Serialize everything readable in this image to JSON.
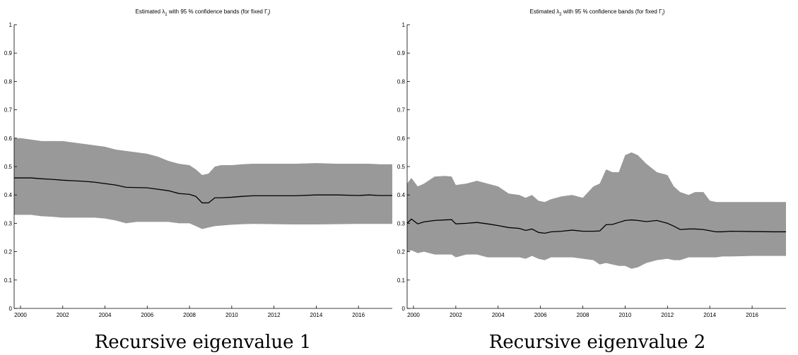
{
  "chart_data": [
    {
      "type": "area",
      "title_prefix": "Estimated",
      "title_symbol": "λ",
      "title_subscript": "1",
      "title_middle": "with 95 % confidence bands (for fixed",
      "title_symbol2": "Γ",
      "title_subscript2": "i",
      "title_suffix": ")",
      "caption": "Recursive eigenvalue 1",
      "xlim": [
        1999.7,
        2017.6
      ],
      "ylim": [
        0,
        1
      ],
      "xticks": [
        2000,
        2002,
        2004,
        2006,
        2008,
        2010,
        2012,
        2014,
        2016
      ],
      "yticks": [
        0,
        0.1,
        0.2,
        0.3,
        0.4,
        0.5,
        0.6,
        0.7,
        0.8,
        0.9,
        1
      ],
      "band_color": "#999999",
      "line_color": "#000000",
      "x": [
        1999.7,
        2000.0,
        2000.5,
        2001.0,
        2001.5,
        2002.0,
        2002.5,
        2003.0,
        2003.5,
        2004.0,
        2004.5,
        2005.0,
        2005.5,
        2006.0,
        2006.5,
        2007.0,
        2007.5,
        2008.0,
        2008.3,
        2008.6,
        2008.9,
        2009.2,
        2009.5,
        2010.0,
        2010.5,
        2011.0,
        2012.0,
        2013.0,
        2014.0,
        2015.0,
        2016.0,
        2016.5,
        2017.0,
        2017.6
      ],
      "estimate": [
        0.46,
        0.46,
        0.46,
        0.457,
        0.455,
        0.452,
        0.45,
        0.448,
        0.445,
        0.44,
        0.435,
        0.427,
        0.426,
        0.425,
        0.42,
        0.415,
        0.405,
        0.402,
        0.395,
        0.372,
        0.372,
        0.39,
        0.39,
        0.392,
        0.395,
        0.397,
        0.397,
        0.397,
        0.4,
        0.4,
        0.398,
        0.4,
        0.398,
        0.398
      ],
      "upper": [
        0.6,
        0.6,
        0.595,
        0.59,
        0.59,
        0.59,
        0.585,
        0.58,
        0.575,
        0.57,
        0.56,
        0.555,
        0.55,
        0.545,
        0.535,
        0.52,
        0.51,
        0.505,
        0.49,
        0.47,
        0.475,
        0.5,
        0.505,
        0.505,
        0.508,
        0.51,
        0.51,
        0.51,
        0.512,
        0.51,
        0.51,
        0.51,
        0.508,
        0.508
      ],
      "lower": [
        0.33,
        0.33,
        0.33,
        0.325,
        0.323,
        0.32,
        0.32,
        0.32,
        0.32,
        0.317,
        0.31,
        0.3,
        0.305,
        0.305,
        0.305,
        0.305,
        0.3,
        0.3,
        0.29,
        0.28,
        0.285,
        0.29,
        0.292,
        0.295,
        0.297,
        0.298,
        0.297,
        0.296,
        0.296,
        0.297,
        0.298,
        0.298,
        0.298,
        0.298
      ]
    },
    {
      "type": "area",
      "title_prefix": "Estimated",
      "title_symbol": "λ",
      "title_subscript": "2",
      "title_middle": "with 95 % confidence bands (for fixed",
      "title_symbol2": "Γ",
      "title_subscript2": "i",
      "title_suffix": ")",
      "caption": "Recursive eigenvalue 2",
      "xlim": [
        1999.7,
        2017.6
      ],
      "ylim": [
        0,
        1
      ],
      "xticks": [
        2000,
        2002,
        2004,
        2006,
        2008,
        2010,
        2012,
        2014,
        2016
      ],
      "yticks": [
        0,
        0.1,
        0.2,
        0.3,
        0.4,
        0.5,
        0.6,
        0.7,
        0.8,
        0.9,
        1
      ],
      "band_color": "#999999",
      "line_color": "#000000",
      "x": [
        1999.7,
        1999.9,
        2000.2,
        2000.5,
        2001.0,
        2001.5,
        2001.8,
        2002.0,
        2002.5,
        2003.0,
        2003.5,
        2004.0,
        2004.5,
        2005.0,
        2005.3,
        2005.6,
        2005.9,
        2006.2,
        2006.5,
        2007.0,
        2007.5,
        2008.0,
        2008.5,
        2008.8,
        2009.1,
        2009.4,
        2009.7,
        2010.0,
        2010.3,
        2010.6,
        2011.0,
        2011.5,
        2012.0,
        2012.3,
        2012.6,
        2013.0,
        2013.3,
        2013.7,
        2014.0,
        2014.3,
        2014.6,
        2015.0,
        2016.0,
        2017.0,
        2017.6
      ],
      "estimate": [
        0.3,
        0.315,
        0.298,
        0.305,
        0.31,
        0.312,
        0.313,
        0.298,
        0.3,
        0.303,
        0.298,
        0.292,
        0.285,
        0.282,
        0.275,
        0.28,
        0.268,
        0.265,
        0.27,
        0.272,
        0.276,
        0.272,
        0.272,
        0.273,
        0.295,
        0.296,
        0.303,
        0.31,
        0.312,
        0.31,
        0.306,
        0.31,
        0.3,
        0.29,
        0.278,
        0.28,
        0.28,
        0.278,
        0.274,
        0.27,
        0.27,
        0.272,
        0.271,
        0.27,
        0.27
      ],
      "upper": [
        0.44,
        0.46,
        0.43,
        0.44,
        0.465,
        0.467,
        0.465,
        0.435,
        0.44,
        0.45,
        0.44,
        0.43,
        0.405,
        0.4,
        0.39,
        0.4,
        0.38,
        0.375,
        0.385,
        0.395,
        0.4,
        0.39,
        0.43,
        0.44,
        0.49,
        0.48,
        0.48,
        0.54,
        0.55,
        0.54,
        0.51,
        0.48,
        0.47,
        0.43,
        0.41,
        0.4,
        0.41,
        0.41,
        0.38,
        0.375,
        0.375,
        0.375,
        0.375,
        0.375,
        0.375
      ],
      "lower": [
        0.2,
        0.205,
        0.195,
        0.2,
        0.19,
        0.19,
        0.19,
        0.18,
        0.19,
        0.19,
        0.18,
        0.18,
        0.18,
        0.18,
        0.175,
        0.185,
        0.175,
        0.17,
        0.18,
        0.18,
        0.18,
        0.175,
        0.17,
        0.155,
        0.16,
        0.155,
        0.15,
        0.15,
        0.14,
        0.145,
        0.16,
        0.17,
        0.175,
        0.17,
        0.17,
        0.18,
        0.18,
        0.18,
        0.18,
        0.18,
        0.183,
        0.183,
        0.185,
        0.185,
        0.185
      ]
    }
  ]
}
